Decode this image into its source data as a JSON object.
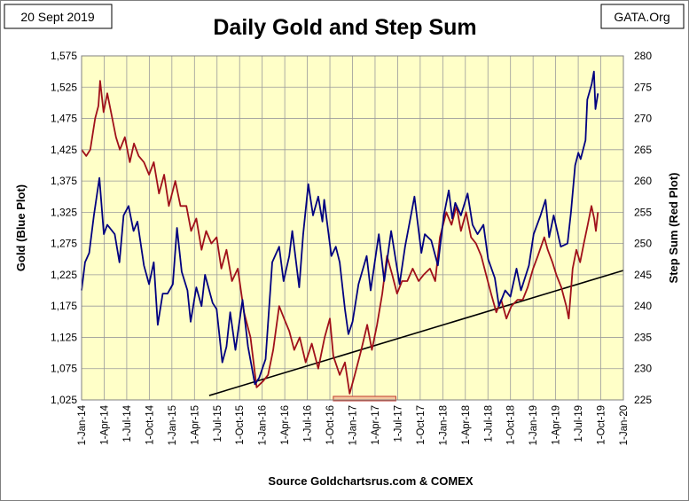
{
  "header": {
    "date_label": "20 Sept 2019",
    "site_label": "GATA.Org"
  },
  "chart_data": {
    "type": "line",
    "title": "Daily Gold and Step Sum",
    "source": "Source Goldchartsrus.com & COMEX",
    "y_left": {
      "label": "Gold   (Blue Plot)",
      "range": [
        1025,
        1575
      ],
      "ticks": [
        "1,025",
        "1,075",
        "1,125",
        "1,175",
        "1,225",
        "1,275",
        "1,325",
        "1,375",
        "1,425",
        "1,475",
        "1,525",
        "1,575"
      ]
    },
    "y_right": {
      "label": "Step Sum   (Red Plot)",
      "range": [
        225,
        280
      ],
      "ticks": [
        "225",
        "230",
        "235",
        "240",
        "245",
        "250",
        "255",
        "260",
        "265",
        "270",
        "275",
        "280"
      ]
    },
    "x_axis": {
      "range": [
        "2014-01-01",
        "2020-01-01"
      ],
      "ticks": [
        "1-Jan-14",
        "1-Apr-14",
        "1-Jul-14",
        "1-Oct-14",
        "1-Jan-15",
        "1-Apr-15",
        "1-Jul-15",
        "1-Oct-15",
        "1-Jan-16",
        "1-Apr-16",
        "1-Jul-16",
        "1-Oct-16",
        "1-Jan-17",
        "1-Apr-17",
        "1-Jul-17",
        "1-Oct-17",
        "1-Jan-18",
        "1-Apr-18",
        "1-Jul-18",
        "1-Oct-18",
        "1-Jan-19",
        "1-Apr-19",
        "1-Jul-19",
        "1-Oct-19",
        "1-Jan-20"
      ]
    },
    "grid": true,
    "colors": {
      "gold": "#000080",
      "step_sum": "#a0101a",
      "trend": "#000000",
      "marker": "#c0392b",
      "background": "#ffffc8"
    },
    "series": [
      {
        "axis": "left",
        "points": [
          [
            "2014-01-01",
            1200
          ],
          [
            "2014-01-15",
            1245
          ],
          [
            "2014-02-01",
            1260
          ],
          [
            "2014-02-20",
            1320
          ],
          [
            "2014-03-14",
            1380
          ],
          [
            "2014-04-01",
            1290
          ],
          [
            "2014-04-15",
            1305
          ],
          [
            "2014-05-15",
            1290
          ],
          [
            "2014-06-03",
            1245
          ],
          [
            "2014-06-20",
            1320
          ],
          [
            "2014-07-10",
            1335
          ],
          [
            "2014-07-30",
            1295
          ],
          [
            "2014-08-15",
            1310
          ],
          [
            "2014-09-10",
            1240
          ],
          [
            "2014-10-01",
            1210
          ],
          [
            "2014-10-20",
            1245
          ],
          [
            "2014-11-05",
            1145
          ],
          [
            "2014-11-25",
            1195
          ],
          [
            "2014-12-15",
            1195
          ],
          [
            "2015-01-05",
            1210
          ],
          [
            "2015-01-22",
            1300
          ],
          [
            "2015-02-10",
            1230
          ],
          [
            "2015-03-05",
            1200
          ],
          [
            "2015-03-18",
            1150
          ],
          [
            "2015-04-10",
            1205
          ],
          [
            "2015-05-01",
            1175
          ],
          [
            "2015-05-15",
            1225
          ],
          [
            "2015-06-15",
            1180
          ],
          [
            "2015-07-01",
            1170
          ],
          [
            "2015-07-24",
            1085
          ],
          [
            "2015-08-10",
            1110
          ],
          [
            "2015-08-25",
            1165
          ],
          [
            "2015-09-15",
            1105
          ],
          [
            "2015-10-14",
            1185
          ],
          [
            "2015-11-05",
            1110
          ],
          [
            "2015-12-03",
            1050
          ],
          [
            "2015-12-20",
            1060
          ],
          [
            "2016-01-15",
            1090
          ],
          [
            "2016-02-11",
            1245
          ],
          [
            "2016-03-10",
            1270
          ],
          [
            "2016-03-28",
            1215
          ],
          [
            "2016-04-20",
            1255
          ],
          [
            "2016-05-02",
            1295
          ],
          [
            "2016-05-30",
            1205
          ],
          [
            "2016-06-15",
            1290
          ],
          [
            "2016-07-06",
            1370
          ],
          [
            "2016-07-25",
            1320
          ],
          [
            "2016-08-15",
            1350
          ],
          [
            "2016-09-01",
            1310
          ],
          [
            "2016-09-08",
            1345
          ],
          [
            "2016-10-07",
            1255
          ],
          [
            "2016-10-25",
            1270
          ],
          [
            "2016-11-10",
            1245
          ],
          [
            "2016-12-01",
            1170
          ],
          [
            "2016-12-15",
            1130
          ],
          [
            "2017-01-01",
            1150
          ],
          [
            "2017-01-25",
            1210
          ],
          [
            "2017-02-27",
            1255
          ],
          [
            "2017-03-15",
            1200
          ],
          [
            "2017-04-17",
            1290
          ],
          [
            "2017-05-09",
            1215
          ],
          [
            "2017-06-06",
            1295
          ],
          [
            "2017-07-10",
            1210
          ],
          [
            "2017-08-01",
            1270
          ],
          [
            "2017-09-08",
            1350
          ],
          [
            "2017-10-06",
            1260
          ],
          [
            "2017-10-20",
            1290
          ],
          [
            "2017-11-15",
            1280
          ],
          [
            "2017-12-12",
            1240
          ],
          [
            "2018-01-05",
            1320
          ],
          [
            "2018-01-25",
            1360
          ],
          [
            "2018-02-08",
            1315
          ],
          [
            "2018-02-20",
            1340
          ],
          [
            "2018-03-15",
            1320
          ],
          [
            "2018-04-11",
            1355
          ],
          [
            "2018-05-01",
            1305
          ],
          [
            "2018-05-21",
            1290
          ],
          [
            "2018-06-14",
            1305
          ],
          [
            "2018-07-03",
            1250
          ],
          [
            "2018-07-30",
            1220
          ],
          [
            "2018-08-16",
            1175
          ],
          [
            "2018-09-10",
            1200
          ],
          [
            "2018-10-01",
            1190
          ],
          [
            "2018-10-26",
            1235
          ],
          [
            "2018-11-13",
            1200
          ],
          [
            "2018-12-15",
            1240
          ],
          [
            "2019-01-03",
            1290
          ],
          [
            "2019-01-31",
            1320
          ],
          [
            "2019-02-20",
            1345
          ],
          [
            "2019-03-07",
            1285
          ],
          [
            "2019-03-25",
            1320
          ],
          [
            "2019-04-23",
            1270
          ],
          [
            "2019-05-20",
            1275
          ],
          [
            "2019-06-03",
            1325
          ],
          [
            "2019-06-20",
            1400
          ],
          [
            "2019-07-03",
            1420
          ],
          [
            "2019-07-12",
            1410
          ],
          [
            "2019-08-01",
            1440
          ],
          [
            "2019-08-08",
            1505
          ],
          [
            "2019-08-26",
            1530
          ],
          [
            "2019-09-04",
            1550
          ],
          [
            "2019-09-10",
            1490
          ],
          [
            "2019-09-16",
            1505
          ],
          [
            "2019-09-20",
            1515
          ]
        ]
      },
      {
        "axis": "right",
        "points": [
          [
            "2014-01-01",
            265
          ],
          [
            "2014-01-20",
            264
          ],
          [
            "2014-02-05",
            265
          ],
          [
            "2014-02-25",
            270
          ],
          [
            "2014-03-10",
            272
          ],
          [
            "2014-03-17",
            276
          ],
          [
            "2014-03-31",
            271
          ],
          [
            "2014-04-15",
            274
          ],
          [
            "2014-05-05",
            270
          ],
          [
            "2014-05-20",
            267
          ],
          [
            "2014-06-05",
            265
          ],
          [
            "2014-06-25",
            267
          ],
          [
            "2014-07-15",
            263
          ],
          [
            "2014-08-01",
            266
          ],
          [
            "2014-08-20",
            264
          ],
          [
            "2014-09-10",
            263
          ],
          [
            "2014-10-01",
            261
          ],
          [
            "2014-10-20",
            263
          ],
          [
            "2014-11-10",
            258
          ],
          [
            "2014-12-01",
            261
          ],
          [
            "2014-12-20",
            256
          ],
          [
            "2015-01-15",
            260
          ],
          [
            "2015-02-05",
            256
          ],
          [
            "2015-03-01",
            256
          ],
          [
            "2015-03-20",
            252
          ],
          [
            "2015-04-10",
            254
          ],
          [
            "2015-05-01",
            249
          ],
          [
            "2015-05-20",
            252
          ],
          [
            "2015-06-10",
            250
          ],
          [
            "2015-07-01",
            251
          ],
          [
            "2015-07-20",
            246
          ],
          [
            "2015-08-10",
            249
          ],
          [
            "2015-09-01",
            244
          ],
          [
            "2015-09-25",
            246
          ],
          [
            "2015-10-20",
            239
          ],
          [
            "2015-11-15",
            235
          ],
          [
            "2015-12-10",
            227
          ],
          [
            "2016-01-05",
            228
          ],
          [
            "2016-01-25",
            229
          ],
          [
            "2016-02-15",
            233
          ],
          [
            "2016-03-10",
            240
          ],
          [
            "2016-03-30",
            238
          ],
          [
            "2016-04-20",
            236
          ],
          [
            "2016-05-10",
            233
          ],
          [
            "2016-06-01",
            235
          ],
          [
            "2016-06-25",
            231
          ],
          [
            "2016-07-20",
            234
          ],
          [
            "2016-08-15",
            230
          ],
          [
            "2016-09-10",
            235
          ],
          [
            "2016-10-01",
            238
          ],
          [
            "2016-10-15",
            232
          ],
          [
            "2016-11-10",
            229
          ],
          [
            "2016-12-01",
            231
          ],
          [
            "2016-12-20",
            226
          ],
          [
            "2017-01-10",
            229
          ],
          [
            "2017-02-05",
            233
          ],
          [
            "2017-03-01",
            237
          ],
          [
            "2017-03-20",
            233
          ],
          [
            "2017-04-10",
            237
          ],
          [
            "2017-05-01",
            242
          ],
          [
            "2017-05-20",
            248
          ],
          [
            "2017-06-10",
            245
          ],
          [
            "2017-06-30",
            242
          ],
          [
            "2017-07-20",
            244
          ],
          [
            "2017-08-10",
            244
          ],
          [
            "2017-09-01",
            246
          ],
          [
            "2017-09-25",
            244
          ],
          [
            "2017-10-15",
            245
          ],
          [
            "2017-11-10",
            246
          ],
          [
            "2017-12-01",
            244
          ],
          [
            "2017-12-20",
            251
          ],
          [
            "2018-01-15",
            255
          ],
          [
            "2018-02-05",
            253
          ],
          [
            "2018-02-25",
            256
          ],
          [
            "2018-03-15",
            252
          ],
          [
            "2018-04-05",
            255
          ],
          [
            "2018-04-25",
            251
          ],
          [
            "2018-05-15",
            250
          ],
          [
            "2018-06-05",
            248
          ],
          [
            "2018-06-25",
            245
          ],
          [
            "2018-07-15",
            242
          ],
          [
            "2018-08-05",
            239
          ],
          [
            "2018-08-25",
            241
          ],
          [
            "2018-09-15",
            238
          ],
          [
            "2018-10-05",
            240
          ],
          [
            "2018-10-30",
            241
          ],
          [
            "2018-11-20",
            241
          ],
          [
            "2018-12-10",
            243
          ],
          [
            "2019-01-01",
            246
          ],
          [
            "2019-01-20",
            248
          ],
          [
            "2019-02-15",
            251
          ],
          [
            "2019-03-01",
            249
          ],
          [
            "2019-03-20",
            247
          ],
          [
            "2019-04-05",
            245
          ],
          [
            "2019-04-25",
            243
          ],
          [
            "2019-05-15",
            240
          ],
          [
            "2019-05-25",
            238
          ],
          [
            "2019-06-10",
            246
          ],
          [
            "2019-06-25",
            249
          ],
          [
            "2019-07-10",
            247
          ],
          [
            "2019-07-25",
            250
          ],
          [
            "2019-08-10",
            253
          ],
          [
            "2019-08-25",
            256
          ],
          [
            "2019-09-05",
            254
          ],
          [
            "2019-09-12",
            252
          ],
          [
            "2019-09-20",
            255
          ]
        ]
      }
    ],
    "trend_line": {
      "axis": "left",
      "from": [
        "2015-06-01",
        1032
      ],
      "to": [
        "2020-01-01",
        1232
      ]
    },
    "highlight_range": {
      "from": "2016-10-15",
      "to": "2017-06-25"
    }
  }
}
